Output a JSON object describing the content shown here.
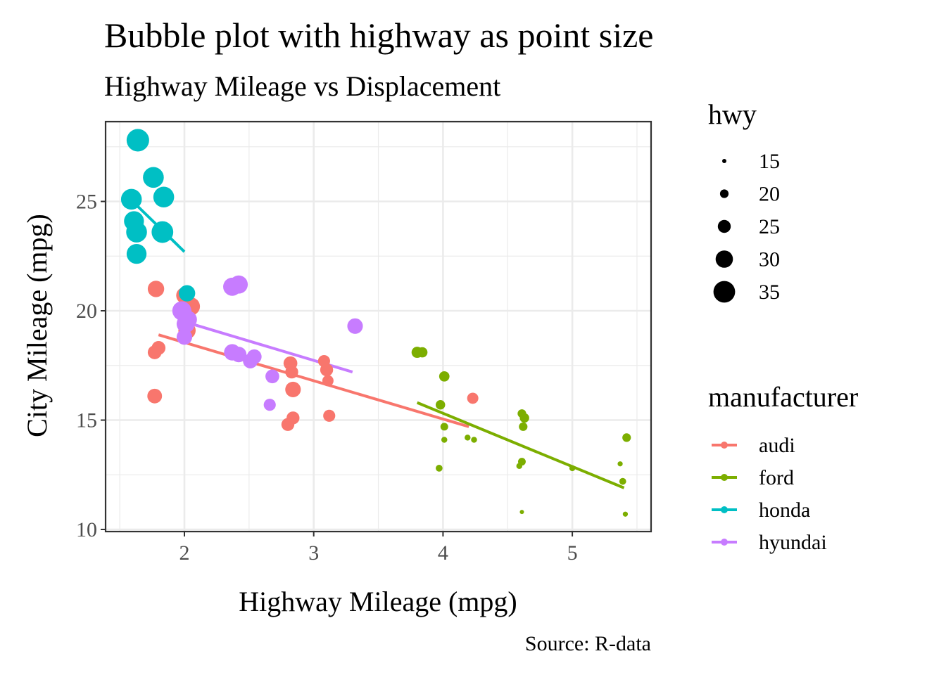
{
  "chart_data": {
    "type": "scatter",
    "title": "Bubble plot with highway as point size",
    "subtitle": "Highway Mileage vs Displacement",
    "xlabel": "Highway Mileage (mpg)",
    "ylabel": "City Mileage (mpg)",
    "caption": "Source: R-data",
    "xlim": [
      1.4,
      5.6
    ],
    "ylim": [
      9.8,
      28.6
    ],
    "x_ticks": [
      2,
      3,
      4,
      5
    ],
    "y_ticks": [
      10,
      15,
      20,
      25
    ],
    "grid": true,
    "size_legend": {
      "title": "hwy",
      "values": [
        15,
        20,
        25,
        30,
        35
      ]
    },
    "color_legend": {
      "title": "manufacturer",
      "entries": [
        "audi",
        "ford",
        "honda",
        "hyundai"
      ]
    },
    "colors": {
      "audi": "#F8766D",
      "ford": "#7CAE00",
      "honda": "#00BFC4",
      "hyundai": "#C77CFF"
    },
    "series": [
      {
        "name": "audi",
        "points": [
          {
            "x": 1.78,
            "y": 21.0,
            "hwy": 29
          },
          {
            "x": 2.0,
            "y": 20.7,
            "hwy": 29
          },
          {
            "x": 2.05,
            "y": 20.2,
            "hwy": 31
          },
          {
            "x": 2.02,
            "y": 19.1,
            "hwy": 30
          },
          {
            "x": 1.8,
            "y": 18.3,
            "hwy": 26
          },
          {
            "x": 1.77,
            "y": 18.1,
            "hwy": 26
          },
          {
            "x": 1.77,
            "y": 16.1,
            "hwy": 27
          },
          {
            "x": 2.82,
            "y": 17.6,
            "hwy": 26
          },
          {
            "x": 2.83,
            "y": 17.2,
            "hwy": 25
          },
          {
            "x": 2.84,
            "y": 16.4,
            "hwy": 28
          },
          {
            "x": 2.84,
            "y": 15.1,
            "hwy": 25
          },
          {
            "x": 2.8,
            "y": 14.8,
            "hwy": 25
          },
          {
            "x": 3.08,
            "y": 17.7,
            "hwy": 24
          },
          {
            "x": 3.1,
            "y": 17.3,
            "hwy": 25
          },
          {
            "x": 3.11,
            "y": 16.8,
            "hwy": 23
          },
          {
            "x": 3.12,
            "y": 15.2,
            "hwy": 24
          },
          {
            "x": 4.23,
            "y": 16.0,
            "hwy": 23
          }
        ],
        "trend": {
          "x": [
            1.8,
            4.2
          ],
          "y": [
            18.9,
            14.7
          ]
        }
      },
      {
        "name": "ford",
        "points": [
          {
            "x": 3.8,
            "y": 18.1,
            "hwy": 23
          },
          {
            "x": 3.84,
            "y": 18.1,
            "hwy": 22
          },
          {
            "x": 4.01,
            "y": 17.0,
            "hwy": 22
          },
          {
            "x": 3.98,
            "y": 15.7,
            "hwy": 21
          },
          {
            "x": 4.01,
            "y": 14.7,
            "hwy": 19
          },
          {
            "x": 4.01,
            "y": 14.1,
            "hwy": 17
          },
          {
            "x": 3.97,
            "y": 12.8,
            "hwy": 18
          },
          {
            "x": 4.19,
            "y": 14.2,
            "hwy": 17
          },
          {
            "x": 4.24,
            "y": 14.1,
            "hwy": 17
          },
          {
            "x": 4.61,
            "y": 15.3,
            "hwy": 20
          },
          {
            "x": 4.63,
            "y": 15.1,
            "hwy": 21
          },
          {
            "x": 4.62,
            "y": 14.7,
            "hwy": 20
          },
          {
            "x": 4.61,
            "y": 13.1,
            "hwy": 19
          },
          {
            "x": 4.59,
            "y": 12.9,
            "hwy": 17
          },
          {
            "x": 4.61,
            "y": 10.8,
            "hwy": 15
          },
          {
            "x": 5.0,
            "y": 12.8,
            "hwy": 17
          },
          {
            "x": 5.37,
            "y": 13.0,
            "hwy": 16
          },
          {
            "x": 5.39,
            "y": 12.2,
            "hwy": 18
          },
          {
            "x": 5.42,
            "y": 14.2,
            "hwy": 20
          },
          {
            "x": 5.41,
            "y": 10.7,
            "hwy": 16
          }
        ],
        "trend": {
          "x": [
            3.8,
            5.4
          ],
          "y": [
            15.8,
            11.9
          ]
        }
      },
      {
        "name": "honda",
        "points": [
          {
            "x": 1.64,
            "y": 27.8,
            "hwy": 36
          },
          {
            "x": 1.76,
            "y": 26.1,
            "hwy": 34
          },
          {
            "x": 1.59,
            "y": 25.1,
            "hwy": 34
          },
          {
            "x": 1.84,
            "y": 25.2,
            "hwy": 34
          },
          {
            "x": 1.61,
            "y": 24.1,
            "hwy": 33
          },
          {
            "x": 1.63,
            "y": 23.6,
            "hwy": 34
          },
          {
            "x": 1.83,
            "y": 23.6,
            "hwy": 35
          },
          {
            "x": 1.63,
            "y": 22.6,
            "hwy": 33
          },
          {
            "x": 2.02,
            "y": 20.8,
            "hwy": 29
          }
        ],
        "trend": {
          "x": [
            1.6,
            2.0
          ],
          "y": [
            25.0,
            22.7
          ]
        }
      },
      {
        "name": "hyundai",
        "points": [
          {
            "x": 2.37,
            "y": 21.1,
            "hwy": 31
          },
          {
            "x": 2.42,
            "y": 21.2,
            "hwy": 31
          },
          {
            "x": 1.99,
            "y": 19.9,
            "hwy": 30
          },
          {
            "x": 1.98,
            "y": 20.0,
            "hwy": 32
          },
          {
            "x": 2.01,
            "y": 19.4,
            "hwy": 31
          },
          {
            "x": 2.03,
            "y": 19.6,
            "hwy": 30
          },
          {
            "x": 2.0,
            "y": 18.8,
            "hwy": 28
          },
          {
            "x": 2.37,
            "y": 18.1,
            "hwy": 29
          },
          {
            "x": 2.42,
            "y": 18.0,
            "hwy": 28
          },
          {
            "x": 2.51,
            "y": 17.7,
            "hwy": 27
          },
          {
            "x": 2.54,
            "y": 17.9,
            "hwy": 27
          },
          {
            "x": 2.68,
            "y": 17.0,
            "hwy": 26
          },
          {
            "x": 2.66,
            "y": 15.7,
            "hwy": 24
          },
          {
            "x": 3.32,
            "y": 19.3,
            "hwy": 28
          }
        ],
        "trend": {
          "x": [
            2.0,
            3.3
          ],
          "y": [
            19.5,
            17.2
          ]
        }
      }
    ]
  }
}
